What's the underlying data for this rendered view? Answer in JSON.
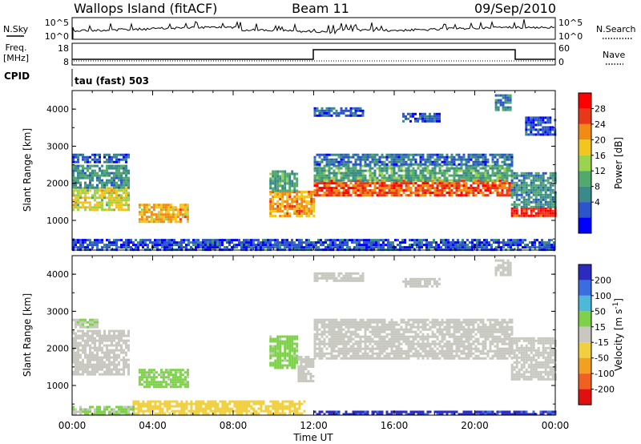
{
  "header": {
    "title_left": "Wallops Island (fitACF)",
    "title_center": "Beam 11",
    "title_right": "09/Sep/2010"
  },
  "strips": {
    "nsky": {
      "label": "N.Sky",
      "ticks": [
        "10^5",
        "10^0"
      ],
      "right_label": "N.Search",
      "right_ticks": [
        "10^5",
        "10^0"
      ]
    },
    "freq": {
      "label_top": "Freq.",
      "label_bottom": "[MHz]",
      "ticks": [
        "18",
        "8"
      ],
      "right_label": "Nave",
      "right_ticks": [
        "60",
        "0"
      ]
    },
    "cpid": {
      "label": "CPID",
      "value": "tau (fast) 503"
    }
  },
  "colors": {
    "power": [
      "#0000ff",
      "#2b55c8",
      "#3a8a8a",
      "#52a96e",
      "#9bd34f",
      "#f3c51f",
      "#f28b13",
      "#e8381a",
      "#ff0000"
    ],
    "velocity": [
      "#2b2bbf",
      "#3a6ee0",
      "#4fb7d8",
      "#7ed24a",
      "#c8c8c0",
      "#f0d040",
      "#f2a020",
      "#f06020",
      "#e01010"
    ]
  },
  "chart_data": [
    {
      "type": "heatmap",
      "name": "power-panel",
      "ylabel": "Slant Range [km]",
      "ylim": [
        200,
        4500
      ],
      "xlim_hours": [
        0,
        24
      ],
      "yticks": [
        "1000",
        "2000",
        "3000",
        "4000"
      ],
      "colorbar": {
        "label": "Power [dB]",
        "ticks": [
          "28",
          "24",
          "20",
          "16",
          "12",
          "8",
          "4"
        ],
        "range": [
          0,
          32
        ]
      },
      "bands": [
        {
          "t0": 0.0,
          "t1": 2.8,
          "r0": 1300,
          "r1": 1900,
          "level": 18
        },
        {
          "t0": 0.0,
          "t1": 2.8,
          "r0": 1900,
          "r1": 2500,
          "level": 10
        },
        {
          "t0": 0.0,
          "t1": 2.8,
          "r0": 2600,
          "r1": 2800,
          "level": 6
        },
        {
          "t0": 3.3,
          "t1": 5.8,
          "r0": 950,
          "r1": 1450,
          "level": 21
        },
        {
          "t0": 9.8,
          "t1": 12.0,
          "r0": 1100,
          "r1": 1800,
          "level": 22
        },
        {
          "t0": 9.8,
          "t1": 11.2,
          "r0": 1800,
          "r1": 2350,
          "level": 11
        },
        {
          "t0": 12.0,
          "t1": 21.8,
          "r0": 1700,
          "r1": 2100,
          "level": 26
        },
        {
          "t0": 12.0,
          "t1": 21.8,
          "r0": 2100,
          "r1": 2500,
          "level": 12
        },
        {
          "t0": 12.0,
          "t1": 21.8,
          "r0": 2500,
          "r1": 2800,
          "level": 7
        },
        {
          "t0": 12.0,
          "t1": 14.5,
          "r0": 3800,
          "r1": 4050,
          "level": 6
        },
        {
          "t0": 16.4,
          "t1": 18.2,
          "r0": 3650,
          "r1": 3900,
          "level": 6
        },
        {
          "t0": 21.0,
          "t1": 21.8,
          "r0": 4000,
          "r1": 4400,
          "level": 8
        },
        {
          "t0": 21.8,
          "t1": 24.0,
          "r0": 1150,
          "r1": 1350,
          "level": 28
        },
        {
          "t0": 21.8,
          "t1": 24.0,
          "r0": 1350,
          "r1": 2300,
          "level": 10
        },
        {
          "t0": 22.5,
          "t1": 24.0,
          "r0": 3300,
          "r1": 3800,
          "level": 5
        },
        {
          "t0": 0.0,
          "t1": 24.0,
          "r0": 230,
          "r1": 500,
          "level": 5
        }
      ]
    },
    {
      "type": "heatmap",
      "name": "velocity-panel",
      "xlabel": "Time UT",
      "ylabel": "Slant Range [km]",
      "ylim": [
        200,
        4500
      ],
      "xlim_hours": [
        0,
        24
      ],
      "yticks": [
        "1000",
        "2000",
        "3000",
        "4000"
      ],
      "xticks": [
        "00:00",
        "04:00",
        "08:00",
        "12:00",
        "16:00",
        "20:00",
        "00:00"
      ],
      "colorbar": {
        "label": "Velocity",
        "unit": "[m s",
        "unit_exp": "-1",
        "unit_end": "]",
        "ticks": [
          "200",
          "100",
          "50",
          "15",
          "-15",
          "-50",
          "-100",
          "-200"
        ],
        "range": [
          -250,
          250
        ]
      },
      "bands": [
        {
          "t0": 0.0,
          "t1": 2.8,
          "r0": 1300,
          "r1": 2500,
          "level": 0
        },
        {
          "t0": 0.0,
          "t1": 1.2,
          "r0": 2600,
          "r1": 2800,
          "level": 25
        },
        {
          "t0": 3.3,
          "t1": 5.8,
          "r0": 950,
          "r1": 1450,
          "level": 35
        },
        {
          "t0": 9.8,
          "t1": 11.2,
          "r0": 1500,
          "r1": 2350,
          "level": 35
        },
        {
          "t0": 11.2,
          "t1": 12.0,
          "r0": 1100,
          "r1": 1800,
          "level": 0
        },
        {
          "t0": 12.0,
          "t1": 21.8,
          "r0": 1700,
          "r1": 2800,
          "level": 0
        },
        {
          "t0": 12.0,
          "t1": 14.5,
          "r0": 3800,
          "r1": 4050,
          "level": 0
        },
        {
          "t0": 16.4,
          "t1": 18.2,
          "r0": 3650,
          "r1": 3900,
          "level": 0
        },
        {
          "t0": 21.0,
          "t1": 21.8,
          "r0": 4000,
          "r1": 4400,
          "level": 0
        },
        {
          "t0": 21.8,
          "t1": 24.0,
          "r0": 1150,
          "r1": 2300,
          "level": 0
        },
        {
          "t0": 3.0,
          "t1": 11.5,
          "r0": 230,
          "r1": 600,
          "level": -40
        },
        {
          "t0": 0.0,
          "t1": 3.0,
          "r0": 230,
          "r1": 450,
          "level": 30
        },
        {
          "t0": 12.0,
          "t1": 24.0,
          "r0": 230,
          "r1": 320,
          "level": 200
        }
      ]
    }
  ]
}
